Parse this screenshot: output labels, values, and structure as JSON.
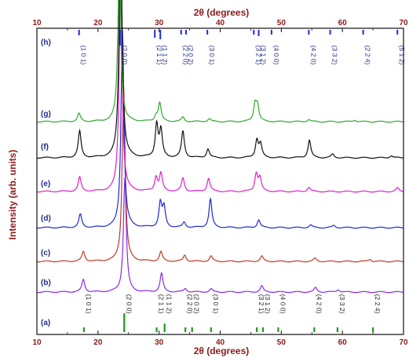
{
  "chart_data": {
    "type": "line",
    "xlabel": "2θ (degrees)",
    "x2label": "2θ (degrees)",
    "ylabel": "Intensity (arb. units)",
    "xlim": [
      10,
      70
    ],
    "xticks": [
      10,
      20,
      30,
      40,
      50,
      60,
      70
    ],
    "grid": false,
    "series": [
      {
        "name": "(a)",
        "kind": "reference",
        "color": "#1a9a1a",
        "peaks": [
          {
            "x": 17.7,
            "hkl": "(1 0 1)",
            "rel": 0.12
          },
          {
            "x": 24.3,
            "hkl": "(2 0 0)",
            "rel": 1.0
          },
          {
            "x": 29.6,
            "hkl": "(2 1 1)",
            "rel": 0.12
          },
          {
            "x": 30.9,
            "hkl": "(1 1 2)",
            "rel": 0.45
          },
          {
            "x": 34.3,
            "hkl": "(2 2 0)",
            "rel": 0.12
          },
          {
            "x": 35.4,
            "hkl": "(2 0 2)",
            "rel": 0.12
          },
          {
            "x": 38.5,
            "hkl": "(3 0 1)",
            "rel": 0.12
          },
          {
            "x": 46.0,
            "hkl": "(3 2 1)",
            "rel": 0.15
          },
          {
            "x": 47.0,
            "hkl": "(3 1 2)",
            "rel": 0.25
          },
          {
            "x": 49.5,
            "hkl": "(4 0 0)",
            "rel": 0.12
          },
          {
            "x": 55.4,
            "hkl": "(4 2 0)",
            "rel": 0.15
          },
          {
            "x": 59.2,
            "hkl": "(3 3 2)",
            "rel": 0.12
          },
          {
            "x": 65.0,
            "hkl": "(2 2 4)",
            "rel": 0.12
          }
        ]
      },
      {
        "name": "(b)",
        "color": "#8a2be2",
        "peaks": [
          {
            "x": 17.6,
            "h": 0.28
          },
          {
            "x": 24.4,
            "h": 2.6
          },
          {
            "x": 30.4,
            "h": 0.42
          },
          {
            "x": 34.3,
            "h": 0.08
          },
          {
            "x": 38.5,
            "h": 0.07
          },
          {
            "x": 46.8,
            "h": 0.14
          },
          {
            "x": 55.6,
            "h": 0.1
          },
          {
            "x": 59.3,
            "h": 0.06
          }
        ]
      },
      {
        "name": "(c)",
        "color": "#c0392b",
        "peaks": [
          {
            "x": 17.6,
            "h": 0.22
          },
          {
            "x": 24.2,
            "h": 4.0
          },
          {
            "x": 30.3,
            "h": 0.22
          },
          {
            "x": 34.2,
            "h": 0.14
          },
          {
            "x": 38.5,
            "h": 0.12
          },
          {
            "x": 46.8,
            "h": 0.12
          },
          {
            "x": 55.5,
            "h": 0.07
          },
          {
            "x": 64.5,
            "h": 0.05
          }
        ]
      },
      {
        "name": "(d)",
        "color": "#1f2ad4",
        "peaks": [
          {
            "x": 17.1,
            "h": 0.3
          },
          {
            "x": 24.0,
            "h": 4.5
          },
          {
            "x": 30.2,
            "h": 0.55
          },
          {
            "x": 30.8,
            "h": 0.45
          },
          {
            "x": 34.1,
            "h": 0.12
          },
          {
            "x": 38.4,
            "h": 0.65
          },
          {
            "x": 46.3,
            "h": 0.18
          },
          {
            "x": 54.8,
            "h": 0.06
          },
          {
            "x": 58.6,
            "h": 0.05
          }
        ]
      },
      {
        "name": "(e)",
        "color": "#e020c8",
        "peaks": [
          {
            "x": 17.0,
            "h": 0.32
          },
          {
            "x": 23.7,
            "h": 5.0
          },
          {
            "x": 29.5,
            "h": 0.32
          },
          {
            "x": 30.3,
            "h": 0.4
          },
          {
            "x": 33.9,
            "h": 0.3
          },
          {
            "x": 38.1,
            "h": 0.3
          },
          {
            "x": 45.9,
            "h": 0.4
          },
          {
            "x": 46.5,
            "h": 0.3
          },
          {
            "x": 54.5,
            "h": 0.1
          },
          {
            "x": 69.0,
            "h": 0.08
          }
        ]
      },
      {
        "name": "(f)",
        "color": "#111111",
        "peaks": [
          {
            "x": 17.0,
            "h": 0.6
          },
          {
            "x": 23.7,
            "h": 5.5
          },
          {
            "x": 29.6,
            "h": 0.75
          },
          {
            "x": 30.3,
            "h": 0.6
          },
          {
            "x": 33.9,
            "h": 0.6
          },
          {
            "x": 38.0,
            "h": 0.2
          },
          {
            "x": 46.0,
            "h": 0.4
          },
          {
            "x": 46.6,
            "h": 0.3
          },
          {
            "x": 54.6,
            "h": 0.4
          },
          {
            "x": 58.4,
            "h": 0.08
          },
          {
            "x": 68.0,
            "h": 0.05
          }
        ]
      },
      {
        "name": "(g)",
        "color": "#2eaa2e",
        "peaks": [
          {
            "x": 16.9,
            "h": 0.18
          },
          {
            "x": 23.5,
            "h": 3.8
          },
          {
            "x": 29.5,
            "h": 0.12
          },
          {
            "x": 30.1,
            "h": 0.42
          },
          {
            "x": 33.9,
            "h": 0.1
          },
          {
            "x": 38.2,
            "h": 0.07
          },
          {
            "x": 45.7,
            "h": 0.38
          },
          {
            "x": 46.1,
            "h": 0.35
          },
          {
            "x": 54.5,
            "h": 0.05
          },
          {
            "x": 62.0,
            "h": 0.04
          }
        ]
      },
      {
        "name": "(h)",
        "kind": "reference",
        "color": "#1f2ad4",
        "peaks": [
          {
            "x": 16.9,
            "hkl": "(1 0 1)",
            "rel": 0.35
          },
          {
            "x": 23.6,
            "hkl": "(2 0 0)",
            "rel": 1.0
          },
          {
            "x": 29.3,
            "hkl": "(2 1 1)",
            "rel": 0.5
          },
          {
            "x": 30.2,
            "hkl": "(1 1 2)",
            "rel": 0.6
          },
          {
            "x": 33.6,
            "hkl": "(2 2 0)",
            "rel": 0.3
          },
          {
            "x": 34.4,
            "hkl": "(2 0 2)",
            "rel": 0.3
          },
          {
            "x": 37.9,
            "hkl": "(3 0 1)",
            "rel": 0.3
          },
          {
            "x": 45.5,
            "hkl": "(3 2 1)",
            "rel": 0.3
          },
          {
            "x": 46.3,
            "hkl": "(3 1 2)",
            "rel": 0.4
          },
          {
            "x": 48.4,
            "hkl": "(4 0 0)",
            "rel": 0.3
          },
          {
            "x": 54.5,
            "hkl": "(4 2 0)",
            "rel": 0.3
          },
          {
            "x": 58.0,
            "hkl": "(3 3 2)",
            "rel": 0.3
          },
          {
            "x": 63.4,
            "hkl": "(2 2 4)",
            "rel": 0.3
          },
          {
            "x": 69.0,
            "hkl": "(5 1 2)",
            "rel": 0.3
          }
        ]
      }
    ]
  },
  "colors": {
    "axis_text": "#8b1a1a",
    "panel_label": "#1f2a8a",
    "frame": "#111111"
  }
}
